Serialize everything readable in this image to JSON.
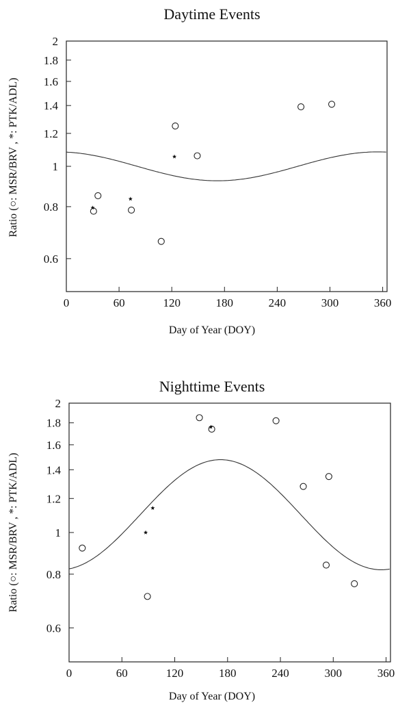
{
  "chart_data": [
    {
      "type": "scatter",
      "title": "Daytime Events",
      "xlabel": "Day of Year  (DOY)",
      "ylabel": "Ratio (○: MSR/BRV , *: PTK/ADL)",
      "xlim": [
        0,
        365
      ],
      "ylim": [
        0.5,
        2.0
      ],
      "y_scale": "log",
      "xticks": [
        "0",
        "60",
        "120",
        "180",
        "240",
        "300",
        "360"
      ],
      "yticks": [
        "0.6",
        "0.8",
        "1",
        "1.2",
        "1.4",
        "1.6",
        "1.8",
        "2"
      ],
      "grid": false,
      "series": [
        {
          "name": "MSR/BRV",
          "marker": "circle",
          "x": [
            31,
            36,
            74,
            108,
            124,
            149,
            267,
            302
          ],
          "y": [
            0.78,
            0.85,
            0.785,
            0.66,
            1.25,
            1.06,
            1.39,
            1.41
          ]
        },
        {
          "name": "PTK/ADL",
          "marker": "star",
          "x": [
            30,
            73,
            123
          ],
          "y": [
            0.795,
            0.835,
            1.055
          ]
        }
      ],
      "model_curve": {
        "mean": 1.0,
        "amplitude": 0.08,
        "min_doy": 172
      }
    },
    {
      "type": "scatter",
      "title": "Nighttime Events",
      "xlabel": "Day of Year  (DOY)",
      "ylabel": "Ratio (○: MSR/BRV , *: PTK/ADL)",
      "xlim": [
        0,
        365
      ],
      "ylim": [
        0.5,
        2.0
      ],
      "y_scale": "log",
      "xticks": [
        "0",
        "60",
        "120",
        "180",
        "240",
        "300",
        "360"
      ],
      "yticks": [
        "0.6",
        "0.8",
        "1",
        "1.2",
        "1.4",
        "1.6",
        "1.8",
        "2"
      ],
      "grid": false,
      "series": [
        {
          "name": "MSR/BRV",
          "marker": "circle",
          "x": [
            15,
            89,
            148,
            162,
            235,
            266,
            292,
            295,
            324
          ],
          "y": [
            0.92,
            0.71,
            1.85,
            1.74,
            1.82,
            1.28,
            0.84,
            1.35,
            0.76
          ]
        },
        {
          "name": "PTK/ADL",
          "marker": "star",
          "x": [
            87,
            95,
            161
          ],
          "y": [
            1.0,
            1.14,
            1.76
          ]
        }
      ],
      "model_curve": {
        "mean": 1.1,
        "amplitude": 0.295,
        "max_doy": 172
      }
    }
  ]
}
